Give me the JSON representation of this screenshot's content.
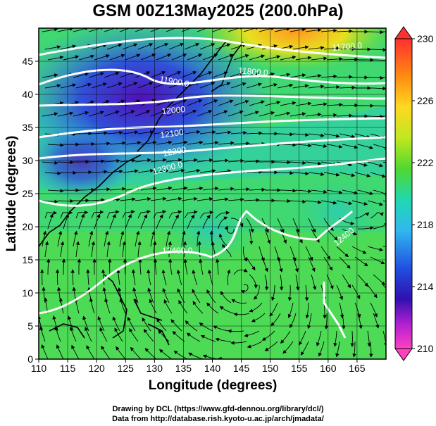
{
  "title": "GSM 00Z13May2025 (200.0hPa)",
  "x_axis": {
    "label": "Longitude (degrees)",
    "ticks": [
      "110",
      "115",
      "120",
      "125",
      "130",
      "135",
      "140",
      "145",
      "150",
      "155",
      "160",
      "165"
    ]
  },
  "y_axis": {
    "label": "Latitude (degrees)",
    "ticks": [
      "0",
      "5",
      "10",
      "15",
      "20",
      "25",
      "30",
      "35",
      "40",
      "45"
    ]
  },
  "colorbar": {
    "labels": [
      "230",
      "226",
      "222",
      "218",
      "214",
      "210"
    ],
    "colors": [
      "#ff1e1e",
      "#ff7a10",
      "#ffcf20",
      "#e8f020",
      "#80e020",
      "#30d050",
      "#20d8b8",
      "#30b8f0",
      "#3060e0",
      "#3010b0",
      "#a020d0",
      "#ff40c0"
    ]
  },
  "contour_labels": [
    "11700.0",
    "11800.0",
    "11900.0",
    "12000",
    "12100",
    "12200",
    "12300.0",
    "12400.0",
    "12400"
  ],
  "credits": {
    "line1": "Drawing by DCL (https://www.gfd-dennou.org/library/dcl/)",
    "line2": "Data from http://database.rish.kyoto-u.ac.jp/arch/jmadata/"
  },
  "chart_data": {
    "type": "map",
    "variable": "temperature with geopotential height contours and wind streamlines at 200 hPa",
    "x_range": [
      110,
      170
    ],
    "y_range": [
      0,
      50
    ],
    "color_range": [
      210,
      230
    ],
    "contour_levels": [
      11700,
      11800,
      11900,
      12000,
      12100,
      12200,
      12300,
      12400
    ]
  }
}
